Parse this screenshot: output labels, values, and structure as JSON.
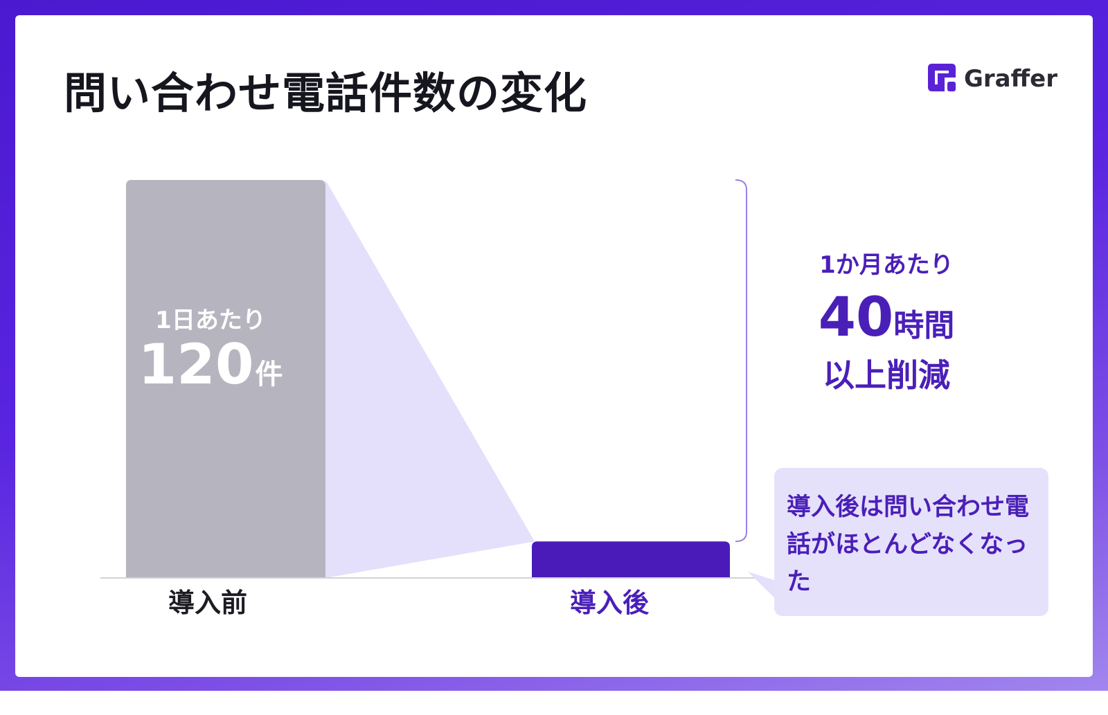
{
  "title": "問い合わせ電話件数の変化",
  "brand": {
    "name": "Graffer",
    "color": "#5a22d6"
  },
  "colors": {
    "before_bar": "#b6b5bf",
    "after_bar": "#4a1bb8",
    "shade": "#e4dffb",
    "accent_text": "#4a1fb8",
    "bracket": "#9b7fe8"
  },
  "chart_data": {
    "type": "bar",
    "categories": [
      "導入前",
      "導入後"
    ],
    "values": [
      120,
      11
    ],
    "ylim": [
      0,
      120
    ],
    "unit": "件",
    "annotations": {
      "before_bar_label_prefix": "1日あたり",
      "before_bar_value": "120",
      "before_bar_unit": "件",
      "saving_prefix": "1か月あたり",
      "saving_value": "40",
      "saving_unit": "時間",
      "saving_suffix": "以上削減",
      "callout": "導入後は問い合わせ電話がほとんどなくなった"
    }
  }
}
